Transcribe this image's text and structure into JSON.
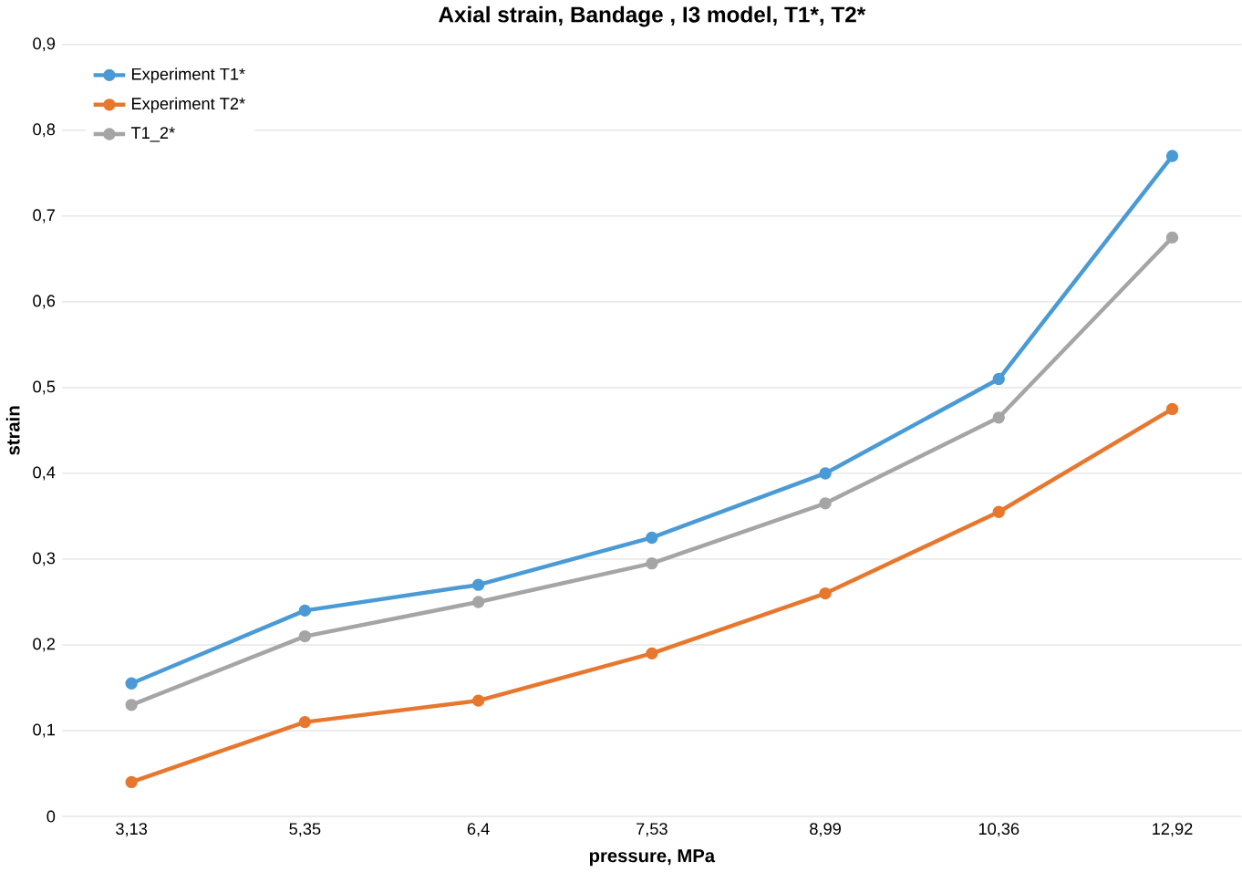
{
  "chart_data": {
    "type": "line",
    "title": "Axial strain, Bandage , I3 model, T1*, T2*",
    "xlabel": "pressure, MPa",
    "ylabel": "strain",
    "categories": [
      "3,13",
      "5,35",
      "6,4",
      "7,53",
      "8,99",
      "10,36",
      "12,92"
    ],
    "series": [
      {
        "name": "Experiment T1*",
        "color": "#4a9ad6",
        "values": [
          0.155,
          0.24,
          0.27,
          0.325,
          0.4,
          0.51,
          0.77
        ]
      },
      {
        "name": "Experiment T2*",
        "color": "#e8772e",
        "values": [
          0.04,
          0.11,
          0.135,
          0.19,
          0.26,
          0.355,
          0.475
        ]
      },
      {
        "name": "T1_2*",
        "color": "#a5a5a5",
        "values": [
          0.13,
          0.21,
          0.25,
          0.295,
          0.365,
          0.465,
          0.675
        ]
      }
    ],
    "ylim": [
      0,
      0.9
    ],
    "yticks": [
      0,
      {
        "value": 0.1,
        "label": "0,1"
      },
      {
        "value": 0.2,
        "label": "0,2"
      },
      {
        "value": 0.3,
        "label": "0,3"
      },
      {
        "value": 0.4,
        "label": "0,4"
      },
      {
        "value": 0.5,
        "label": "0,5"
      },
      {
        "value": 0.6,
        "label": "0,6"
      },
      {
        "value": 0.7,
        "label": "0,7"
      },
      {
        "value": 0.8,
        "label": "0,8"
      },
      {
        "value": 0.9,
        "label": "0,9"
      }
    ],
    "grid": "y",
    "legend": "top left",
    "marker": "circle",
    "line_style": "solid"
  }
}
